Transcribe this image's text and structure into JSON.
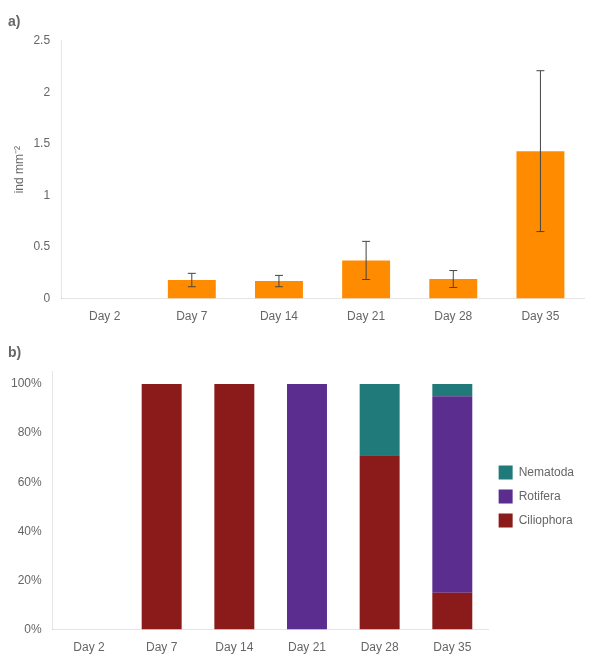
{
  "chart_data": [
    {
      "type": "bar",
      "title": "a)",
      "ylabel": "ind mm⁻²",
      "categories": [
        "Day 2",
        "Day 7",
        "Day 14",
        "Day 21",
        "Day 28",
        "Day 35"
      ],
      "values": [
        0,
        0.18,
        0.17,
        0.37,
        0.19,
        1.43
      ],
      "errors": [
        0,
        0.065,
        0.055,
        0.185,
        0.082,
        0.78
      ],
      "color": "#FF8C00",
      "ylim": [
        0,
        2.5
      ],
      "yticks": [
        0,
        0.5,
        1,
        1.5,
        2,
        2.5
      ],
      "grid": false
    },
    {
      "type": "bar",
      "title": "b)",
      "stacked": true,
      "categories": [
        "Day 2",
        "Day 7",
        "Day 14",
        "Day 21",
        "Day 28",
        "Day 35"
      ],
      "series": [
        {
          "name": "Ciliophora",
          "color": "#8B1A1A",
          "values": [
            0,
            100,
            100,
            0,
            71,
            15
          ]
        },
        {
          "name": "Rotifera",
          "color": "#5B2D8E",
          "values": [
            0,
            0,
            0,
            100,
            0,
            80
          ]
        },
        {
          "name": "Nematoda",
          "color": "#217A7A",
          "values": [
            0,
            0,
            0,
            0,
            29,
            5
          ]
        }
      ],
      "ylim": [
        0,
        105
      ],
      "yticks": [
        {
          "value": 0,
          "label": "0%"
        },
        {
          "value": 20,
          "label": "20%"
        },
        {
          "value": 40,
          "label": "40%"
        },
        {
          "value": 60,
          "label": "60%"
        },
        {
          "value": 80,
          "label": "80%"
        },
        {
          "value": 100,
          "label": "100%"
        }
      ],
      "grid": false,
      "legend": "right"
    }
  ]
}
